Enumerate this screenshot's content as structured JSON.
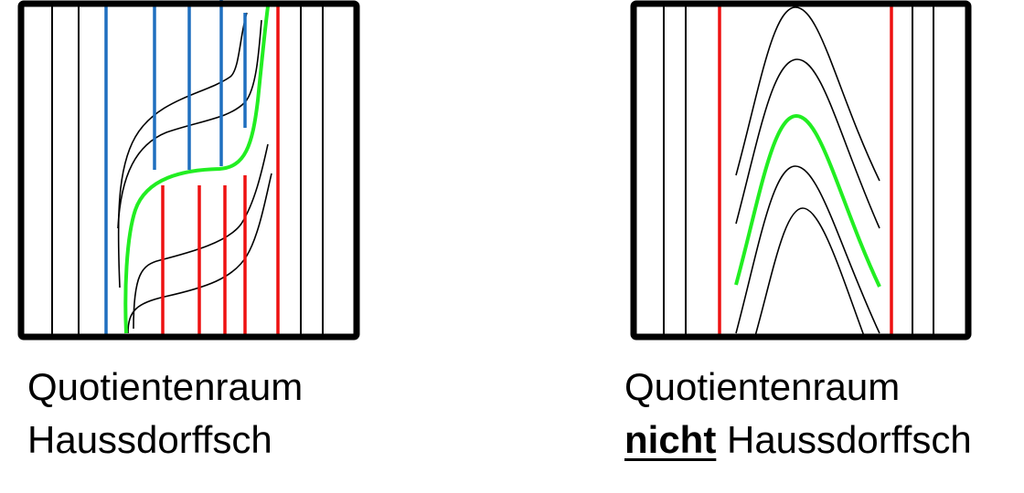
{
  "colors": {
    "frame": "#000000",
    "leaf": "#000000",
    "blue_leaf": "#1f6fbf",
    "red_leaf": "#ee1111",
    "highlight_leaf": "#22ee22"
  },
  "panels": [
    {
      "id": "hausdorff",
      "caption_line1": "Quotientenraum",
      "caption_line2": "Haussdorffsch"
    },
    {
      "id": "non-hausdorff",
      "caption_line1": "Quotientenraum",
      "caption_emphasis": "nicht",
      "caption_line2_rest": " Haussdorffsch"
    }
  ]
}
